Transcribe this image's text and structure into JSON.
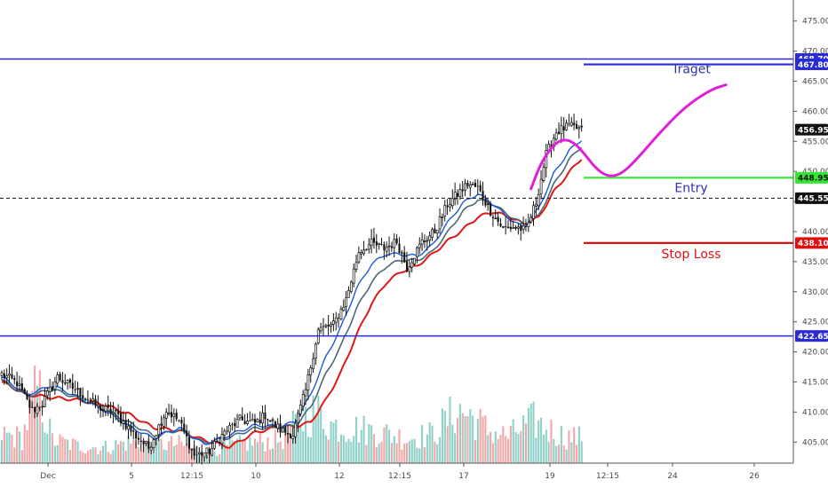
{
  "chart_data": {
    "type": "candlestick",
    "y_axis": {
      "min": 401.5,
      "max": 478.5,
      "ticks": [
        405,
        410,
        415,
        420,
        425,
        430,
        435,
        440,
        445,
        450,
        455,
        460,
        465,
        470,
        475
      ],
      "tick_labels": [
        "405.00",
        "410.00",
        "415.00",
        "420.00",
        "425.00",
        "430.00",
        "435.00",
        "440.00",
        "445.00",
        "450.00",
        "455.00",
        "460.00",
        "465.00",
        "470.00",
        "475.00"
      ],
      "position": "right"
    },
    "x_axis": {
      "labels": [
        "Dec",
        "5",
        "12:15",
        "10",
        "12",
        "12:15",
        "17",
        "19",
        "12:15",
        "24",
        "26"
      ]
    },
    "grid": false,
    "price_tags": [
      {
        "value": 468.7,
        "label": "468.70",
        "color": "#2b2bd6"
      },
      {
        "value": 467.8,
        "label": "467.80",
        "color": "#2b2bd6"
      },
      {
        "value": 456.95,
        "label": "456.95",
        "color": "#111111"
      },
      {
        "value": 448.95,
        "label": "448.95",
        "color": "#33e633"
      },
      {
        "value": 445.55,
        "label": "445.55",
        "color": "#111111"
      },
      {
        "value": 438.1,
        "label": "438.10",
        "color": "#e01010"
      },
      {
        "value": 422.65,
        "label": "422.65",
        "color": "#2b2bd6"
      }
    ],
    "levels": [
      {
        "name": "resistance",
        "value": 468.7,
        "style": "solid",
        "color": "#2b2bd6",
        "full_width": true
      },
      {
        "name": "target",
        "value": 467.8,
        "style": "solid",
        "color": "#2b2bd6",
        "full_width": false
      },
      {
        "name": "entry",
        "value": 448.95,
        "style": "solid",
        "color": "#33e633",
        "full_width": false
      },
      {
        "name": "last-price",
        "value": 445.55,
        "style": "dashed",
        "color": "#111111",
        "full_width": true
      },
      {
        "name": "stop-loss",
        "value": 438.1,
        "style": "solid",
        "color": "#e01010",
        "full_width": false
      },
      {
        "name": "support",
        "value": 422.65,
        "style": "solid",
        "color": "#2b2bd6",
        "full_width": true
      }
    ],
    "annotations": [
      {
        "text": "Traget",
        "value": 466.3,
        "color": "#3030b0"
      },
      {
        "text": "Entry",
        "value": 446.6,
        "color": "#3030b0"
      },
      {
        "text": "Stop Loss",
        "value": 435.6,
        "color": "#e01010"
      }
    ],
    "projection_path": [
      {
        "bar": 209,
        "value": 447.1
      },
      {
        "bar": 213,
        "value": 451.5
      },
      {
        "bar": 218,
        "value": 454.5
      },
      {
        "bar": 222,
        "value": 455.4
      },
      {
        "bar": 226,
        "value": 454.8
      },
      {
        "bar": 230,
        "value": 453.0
      },
      {
        "bar": 234,
        "value": 450.8
      },
      {
        "bar": 238,
        "value": 449.4
      },
      {
        "bar": 242,
        "value": 449.2
      },
      {
        "bar": 246,
        "value": 450.0
      },
      {
        "bar": 252,
        "value": 452.6
      },
      {
        "bar": 260,
        "value": 456.5
      },
      {
        "bar": 270,
        "value": 460.8
      },
      {
        "bar": 280,
        "value": 463.6
      },
      {
        "bar": 286,
        "value": 464.4
      }
    ],
    "price_anchors": [
      [
        0,
        416.3
      ],
      [
        6,
        414.8
      ],
      [
        12,
        410.2
      ],
      [
        16,
        411.4
      ],
      [
        22,
        415.8
      ],
      [
        30,
        413.4
      ],
      [
        38,
        410.8
      ],
      [
        45,
        409.8
      ],
      [
        52,
        406.4
      ],
      [
        58,
        404.0
      ],
      [
        65,
        410.3
      ],
      [
        70,
        408.5
      ],
      [
        76,
        402.8
      ],
      [
        82,
        403.4
      ],
      [
        88,
        406.6
      ],
      [
        94,
        408.7
      ],
      [
        100,
        408.1
      ],
      [
        104,
        409.5
      ],
      [
        110,
        407.0
      ],
      [
        115,
        406.3
      ],
      [
        120,
        413.6
      ],
      [
        125,
        423.7
      ],
      [
        131,
        424.5
      ],
      [
        136,
        428.7
      ],
      [
        141,
        436.7
      ],
      [
        146,
        438.0
      ],
      [
        151,
        437.2
      ],
      [
        156,
        438.3
      ],
      [
        160,
        434.0
      ],
      [
        166,
        438.3
      ],
      [
        171,
        440.0
      ],
      [
        176,
        444.5
      ],
      [
        180,
        446.2
      ],
      [
        184,
        447.9
      ],
      [
        188,
        447.2
      ],
      [
        193,
        443.4
      ],
      [
        198,
        440.5
      ],
      [
        203,
        440.8
      ],
      [
        207,
        440.1
      ],
      [
        211,
        444.9
      ],
      [
        215,
        452.8
      ],
      [
        219,
        456.6
      ],
      [
        224,
        457.5
      ],
      [
        229,
        456.9
      ]
    ],
    "ema_fast_anchors": [
      [
        0,
        415.8
      ],
      [
        10,
        412.9
      ],
      [
        20,
        414.4
      ],
      [
        30,
        412.5
      ],
      [
        40,
        410.4
      ],
      [
        50,
        407.7
      ],
      [
        60,
        405.6
      ],
      [
        70,
        407.4
      ],
      [
        80,
        404.6
      ],
      [
        90,
        406.2
      ],
      [
        100,
        407.8
      ],
      [
        110,
        407.6
      ],
      [
        116,
        408.4
      ],
      [
        122,
        412.9
      ],
      [
        128,
        419.1
      ],
      [
        134,
        424.1
      ],
      [
        140,
        430.4
      ],
      [
        146,
        434.6
      ],
      [
        152,
        436.3
      ],
      [
        158,
        436.2
      ],
      [
        164,
        435.9
      ],
      [
        170,
        437.7
      ],
      [
        176,
        441.4
      ],
      [
        182,
        444.7
      ],
      [
        188,
        446.3
      ],
      [
        194,
        444.6
      ],
      [
        200,
        442.3
      ],
      [
        206,
        440.6
      ],
      [
        212,
        443.8
      ],
      [
        218,
        449.6
      ],
      [
        224,
        453.4
      ],
      [
        229,
        455.3
      ]
    ],
    "ema_mid_anchors": [
      [
        0,
        415.3
      ],
      [
        10,
        412.6
      ],
      [
        20,
        413.8
      ],
      [
        30,
        412.3
      ],
      [
        40,
        410.6
      ],
      [
        50,
        408.3
      ],
      [
        60,
        406.1
      ],
      [
        70,
        407.0
      ],
      [
        80,
        404.9
      ],
      [
        90,
        405.8
      ],
      [
        100,
        407.3
      ],
      [
        110,
        407.5
      ],
      [
        116,
        407.7
      ],
      [
        122,
        410.8
      ],
      [
        128,
        416.3
      ],
      [
        134,
        421.0
      ],
      [
        140,
        427.1
      ],
      [
        146,
        431.6
      ],
      [
        152,
        434.3
      ],
      [
        158,
        435.3
      ],
      [
        164,
        435.2
      ],
      [
        170,
        436.6
      ],
      [
        176,
        439.8
      ],
      [
        182,
        443.3
      ],
      [
        188,
        445.3
      ],
      [
        194,
        444.6
      ],
      [
        200,
        442.8
      ],
      [
        206,
        441.2
      ],
      [
        212,
        442.6
      ],
      [
        218,
        447.8
      ],
      [
        224,
        451.9
      ],
      [
        229,
        454.2
      ]
    ],
    "ema_slow_anchors": [
      [
        0,
        415.0
      ],
      [
        10,
        412.9
      ],
      [
        20,
        412.4
      ],
      [
        30,
        412.0
      ],
      [
        40,
        411.3
      ],
      [
        50,
        409.7
      ],
      [
        60,
        407.4
      ],
      [
        70,
        406.9
      ],
      [
        80,
        405.3
      ],
      [
        90,
        404.2
      ],
      [
        100,
        406.6
      ],
      [
        110,
        407.6
      ],
      [
        116,
        407.6
      ],
      [
        122,
        408.3
      ],
      [
        128,
        412.0
      ],
      [
        134,
        416.6
      ],
      [
        140,
        422.7
      ],
      [
        146,
        428.0
      ],
      [
        152,
        431.6
      ],
      [
        158,
        433.4
      ],
      [
        164,
        434.3
      ],
      [
        170,
        436.2
      ],
      [
        176,
        438.4
      ],
      [
        182,
        440.3
      ],
      [
        188,
        442.4
      ],
      [
        194,
        443.3
      ],
      [
        200,
        442.5
      ],
      [
        206,
        441.3
      ],
      [
        212,
        442.3
      ],
      [
        218,
        446.6
      ],
      [
        224,
        449.8
      ],
      [
        229,
        452.2
      ]
    ],
    "volume_anchors": [
      [
        0,
        3.0
      ],
      [
        8,
        2.6
      ],
      [
        14,
        7.9
      ],
      [
        20,
        2.4
      ],
      [
        30,
        1.8
      ],
      [
        40,
        1.6
      ],
      [
        50,
        2.2
      ],
      [
        60,
        1.9
      ],
      [
        70,
        2.0
      ],
      [
        80,
        1.2
      ],
      [
        90,
        1.8
      ],
      [
        100,
        2.2
      ],
      [
        110,
        2.4
      ],
      [
        118,
        4.5
      ],
      [
        124,
        5.4
      ],
      [
        130,
        4.0
      ],
      [
        140,
        3.6
      ],
      [
        150,
        3.2
      ],
      [
        160,
        2.6
      ],
      [
        170,
        3.0
      ],
      [
        180,
        5.5
      ],
      [
        186,
        4.8
      ],
      [
        192,
        3.4
      ],
      [
        200,
        2.8
      ],
      [
        210,
        4.4
      ],
      [
        215,
        3.6
      ],
      [
        222,
        2.8
      ],
      [
        229,
        2.6
      ]
    ],
    "bar_count": 230,
    "colors": {
      "up_candle": "#111111",
      "down_candle": "#111111",
      "ema_fast": "#1a5ad8",
      "ema_mid": "#4a6878",
      "ema_slow": "#e01818",
      "volume_up": "#8fd0c8",
      "volume_down": "#f0a8a8",
      "projection": "#e020d8",
      "axis_text": "#4a4a4a"
    }
  }
}
